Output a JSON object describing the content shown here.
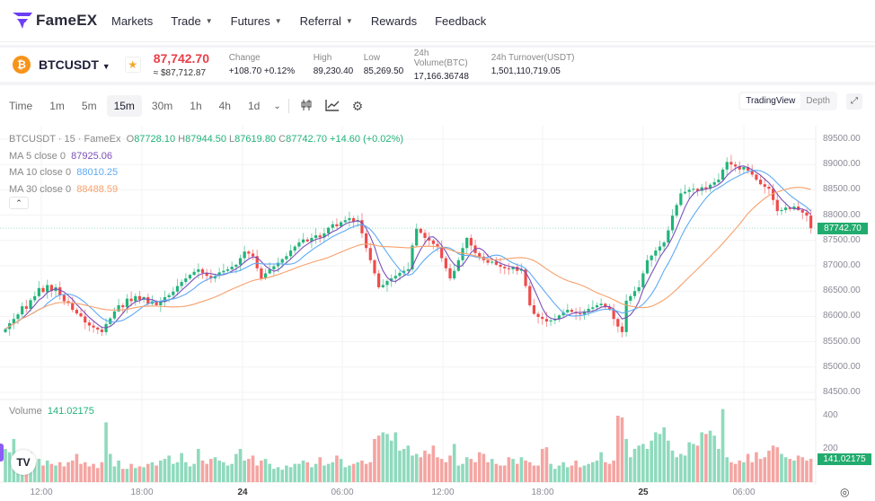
{
  "nav": {
    "brand": "FameEX",
    "items": [
      {
        "label": "Markets"
      },
      {
        "label": "Trade",
        "dropdown": true
      },
      {
        "label": "Futures",
        "dropdown": true
      },
      {
        "label": "Referral",
        "dropdown": true
      },
      {
        "label": "Rewards"
      },
      {
        "label": "Feedback"
      }
    ]
  },
  "ticker": {
    "symbol": "BTCUSDT",
    "coin_glyph": "₿",
    "last_price": "87,742.70",
    "fiat_price": "≈ $87,712.87",
    "stats": [
      {
        "label": "Change",
        "value": "+108.70 +0.12%",
        "positive": true
      },
      {
        "label": "High",
        "value": "89,230.40"
      },
      {
        "label": "Low",
        "value": "85,269.50"
      },
      {
        "label": "24h Volume(BTC)",
        "value": "17,166.36748"
      },
      {
        "label": "24h Turnover(USDT)",
        "value": "1,501,110,719.05"
      }
    ]
  },
  "toolbar": {
    "timeframes": [
      "Time",
      "1m",
      "5m",
      "15m",
      "30m",
      "1h",
      "4h",
      "1d"
    ],
    "active": "15m",
    "views": [
      "TradingView",
      "Depth"
    ],
    "active_view": "TradingView"
  },
  "legend": {
    "title": "BTCUSDT · 15 · FameEx",
    "o": "O",
    "ov": "87728.10",
    "h": "H",
    "hv": "87944.50",
    "l": "L",
    "lv": "87619.80",
    "c": "C",
    "cv": "87742.70",
    "chg": "+14.60 (+0.02%)",
    "ma5": {
      "label": "MA 5 close 0",
      "value": "87925.06",
      "color": "#7b4fb8"
    },
    "ma10": {
      "label": "MA 10 close 0",
      "value": "88010.25",
      "color": "#5eaaf5"
    },
    "ma30": {
      "label": "MA 30 close 0",
      "value": "88488.59",
      "color": "#f7a06b"
    },
    "volume_label": "Volume",
    "volume_value": "141.02175"
  },
  "colors": {
    "up": "#22b37a",
    "down": "#ef4b4b",
    "up_vol": "#8fdabd",
    "down_vol": "#f4a5a2"
  },
  "chart_data": {
    "type": "candlestick",
    "interval": "15m",
    "price_ticks": [
      "89500.00",
      "89000.00",
      "88500.00",
      "88000.00",
      "87500.00",
      "87000.00",
      "86500.00",
      "86000.00",
      "85500.00",
      "85000.00",
      "84500.00"
    ],
    "current_price_label": "87742.70",
    "volume_ticks": [
      "400",
      "200"
    ],
    "current_volume_label": "141.02175",
    "time_ticks": [
      {
        "label": "12:00"
      },
      {
        "label": "18:00"
      },
      {
        "label": "24",
        "bold": true
      },
      {
        "label": "06:00"
      },
      {
        "label": "12:00"
      },
      {
        "label": "18:00"
      },
      {
        "label": "25",
        "bold": true
      },
      {
        "label": "06:00"
      }
    ],
    "close": [
      85750,
      85865,
      85950,
      86040,
      86200,
      86150,
      86320,
      86400,
      86560,
      86480,
      86620,
      86500,
      86575,
      86420,
      86300,
      86260,
      86130,
      86060,
      86000,
      85880,
      85820,
      85780,
      85740,
      85690,
      85850,
      85960,
      86100,
      86220,
      86180,
      86350,
      86300,
      86400,
      86330,
      86380,
      86250,
      86300,
      86220,
      86300,
      86380,
      86420,
      86490,
      86600,
      86680,
      86750,
      86820,
      86880,
      86930,
      86860,
      86800,
      86750,
      86800,
      86870,
      86900,
      86930,
      86980,
      87020,
      87150,
      87280,
      87240,
      87190,
      86950,
      86750,
      86850,
      86930,
      86990,
      87060,
      87130,
      87190,
      87300,
      87380,
      87460,
      87520,
      87480,
      87550,
      87600,
      87560,
      87640,
      87750,
      87820,
      87780,
      87860,
      87900,
      87940,
      87870,
      87900,
      87640,
      87350,
      87110,
      86850,
      86575,
      86620,
      86700,
      86750,
      86800,
      86860,
      86900,
      86930,
      87400,
      87730,
      87650,
      87550,
      87500,
      87430,
      87370,
      87150,
      86950,
      86750,
      86900,
      87110,
      87350,
      87550,
      87400,
      87250,
      87180,
      87110,
      87060,
      87080,
      87020,
      86980,
      86950,
      86930,
      86980,
      86900,
      86930,
      86600,
      86220,
      86050,
      85990,
      85950,
      85900,
      85920,
      85950,
      86020,
      86080,
      86130,
      86090,
      86060,
      86040,
      86100,
      86150,
      86180,
      86220,
      86250,
      86180,
      86130,
      85950,
      85800,
      85690,
      86310,
      86400,
      86500,
      86575,
      86850,
      87110,
      87200,
      87300,
      87380,
      87460,
      87700,
      87990,
      88200,
      88430,
      88460,
      88500,
      88520,
      88480,
      88550,
      88520,
      88600,
      88650,
      88700,
      88900,
      89050,
      89000,
      88960,
      88900,
      88950,
      88880,
      88800,
      88700,
      88610,
      88560,
      88520,
      88300,
      88080,
      88100,
      88150,
      88120,
      88170,
      88100,
      88050,
      87990,
      87742
    ],
    "volume": [
      200,
      180,
      260,
      110,
      90,
      190,
      180,
      120,
      140,
      100,
      130,
      110,
      100,
      120,
      95,
      120,
      130,
      170,
      110,
      120,
      95,
      110,
      85,
      120,
      360,
      170,
      95,
      130,
      80,
      80,
      110,
      85,
      95,
      90,
      110,
      120,
      100,
      130,
      140,
      160,
      110,
      120,
      175,
      120,
      95,
      110,
      200,
      130,
      110,
      140,
      150,
      130,
      120,
      100,
      110,
      170,
      200,
      130,
      140,
      160,
      100,
      130,
      140,
      110,
      80,
      90,
      75,
      100,
      90,
      110,
      110,
      130,
      120,
      90,
      110,
      150,
      100,
      110,
      120,
      160,
      140,
      90,
      100,
      110,
      120,
      130,
      110,
      120,
      260,
      280,
      300,
      290,
      250,
      300,
      190,
      200,
      220,
      160,
      170,
      150,
      190,
      170,
      220,
      150,
      140,
      120,
      160,
      230,
      100,
      110,
      150,
      140,
      120,
      180,
      170,
      120,
      140,
      110,
      100,
      100,
      150,
      140,
      110,
      150,
      130,
      120,
      100,
      100,
      200,
      210,
      110,
      80,
      100,
      120,
      90,
      100,
      130,
      90,
      100,
      110,
      120,
      130,
      180,
      120,
      110,
      130,
      400,
      390,
      260,
      150,
      200,
      220,
      230,
      200,
      250,
      300,
      290,
      330,
      250,
      190,
      150,
      170,
      160,
      240,
      230,
      220,
      300,
      290,
      310,
      280,
      200,
      440,
      150,
      120,
      110,
      130,
      120,
      170,
      120,
      180,
      140,
      150,
      190,
      220,
      210,
      170,
      150,
      140,
      130,
      160,
      150,
      130,
      141
    ]
  }
}
